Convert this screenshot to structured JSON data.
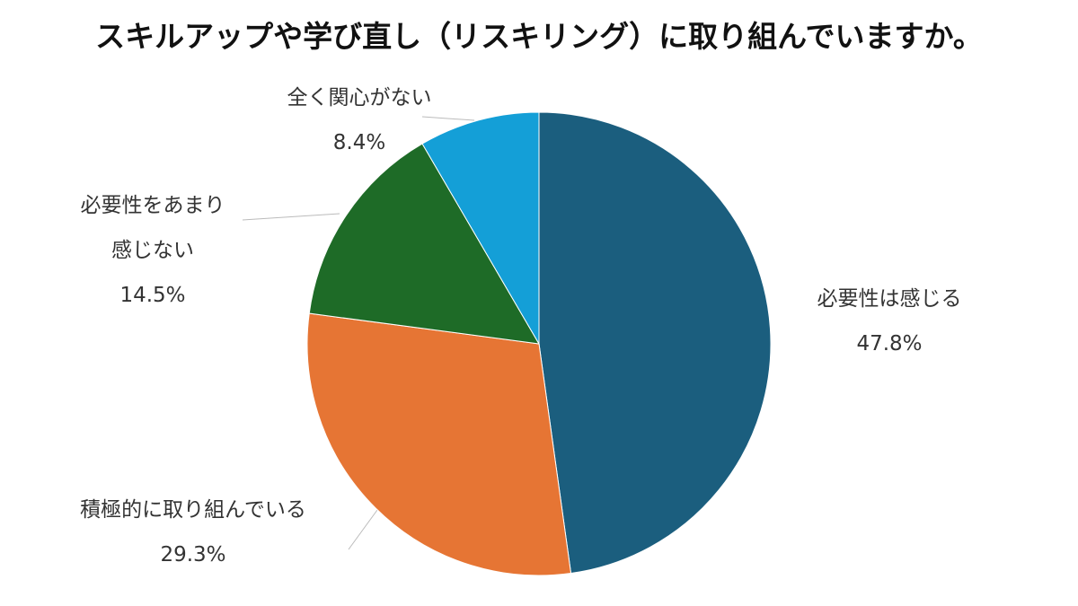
{
  "chart_data": {
    "type": "pie",
    "title": "スキルアップや学び直し（リスキリング）に取り組んでいますか。",
    "categories": [
      "必要性は感じる",
      "積極的に取り組んでいる",
      "必要性をあまり\n感じない",
      "全く関心がない"
    ],
    "values": [
      47.8,
      29.3,
      14.5,
      8.4
    ],
    "value_labels": [
      "47.8%",
      "29.3%",
      "14.5%",
      "8.4%"
    ],
    "colors": [
      "#1b5e7e",
      "#e67534",
      "#1e6b27",
      "#149fd7"
    ]
  }
}
